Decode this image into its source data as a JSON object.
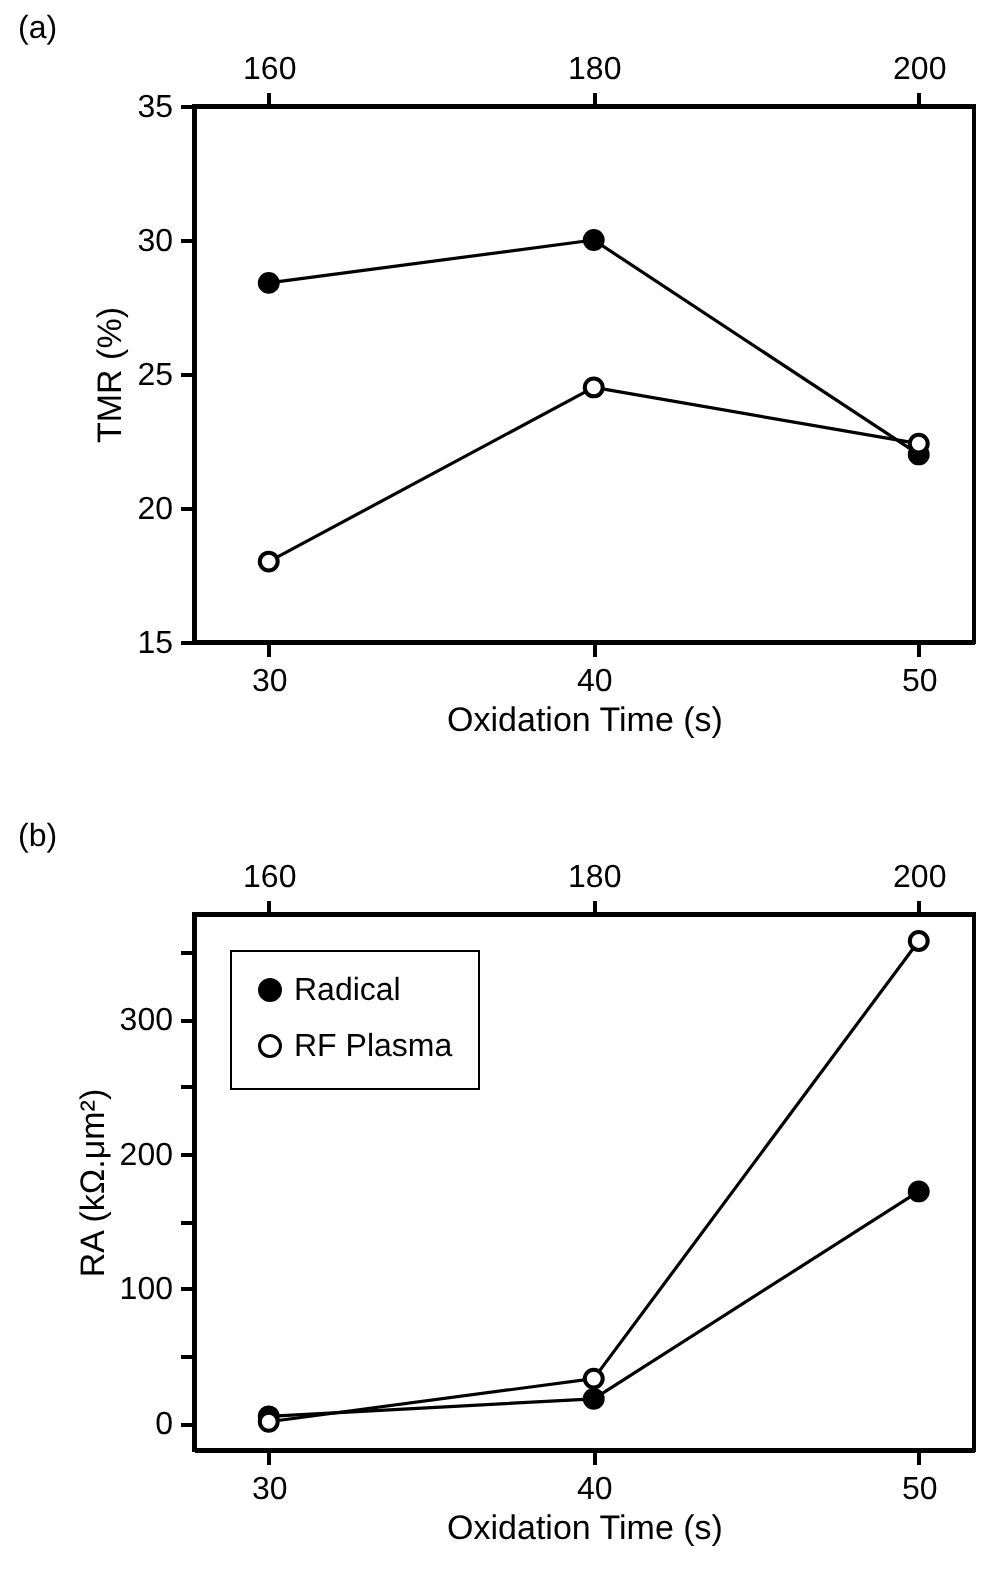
{
  "chart_data": [
    {
      "type": "line",
      "title": "(a)",
      "xlabel": "Oxidation Time (s)",
      "ylabel": "TMR (%)",
      "xlim": [
        27.7,
        51.7
      ],
      "xticks": [
        30,
        40,
        50
      ],
      "x2lim": [
        155.4,
        203.4
      ],
      "x2ticks": [
        160,
        180,
        200
      ],
      "ylim": [
        15,
        35
      ],
      "yticks": [
        15,
        20,
        25,
        30,
        35
      ],
      "x": [
        30,
        40,
        50
      ],
      "marker": "circle",
      "grid": false,
      "series": [
        {
          "color": "#000000",
          "values": [
            28.4,
            30,
            22
          ]
        },
        {
          "color": "#000000",
          "values": [
            18,
            24.5,
            22.4
          ]
        }
      ]
    },
    {
      "type": "line",
      "title": "(b)",
      "xlabel": "Oxidation Time (s)",
      "ylabel": "RA (kΩ.μm²)",
      "xlim": [
        27.7,
        51.7
      ],
      "xticks": [
        30,
        40,
        50
      ],
      "x2lim": [
        155.4,
        203.4
      ],
      "x2ticks": [
        160,
        180,
        200
      ],
      "ylim": [
        -20,
        378
      ],
      "yticks": [
        0,
        {
          "value": 50,
          "label": null
        },
        100,
        {
          "value": 150,
          "label": null
        },
        200,
        {
          "value": 250,
          "label": null
        },
        300,
        {
          "value": 350,
          "label": null
        }
      ],
      "x": [
        30,
        40,
        50
      ],
      "marker": "circle",
      "grid": false,
      "legend": "top left",
      "series": [
        {
          "name": "Radical",
          "color": "#000000",
          "values": [
            5,
            18,
            172
          ]
        },
        {
          "name": "RF Plasma",
          "color": "#000000",
          "values": [
            1,
            33,
            358
          ]
        }
      ]
    }
  ]
}
